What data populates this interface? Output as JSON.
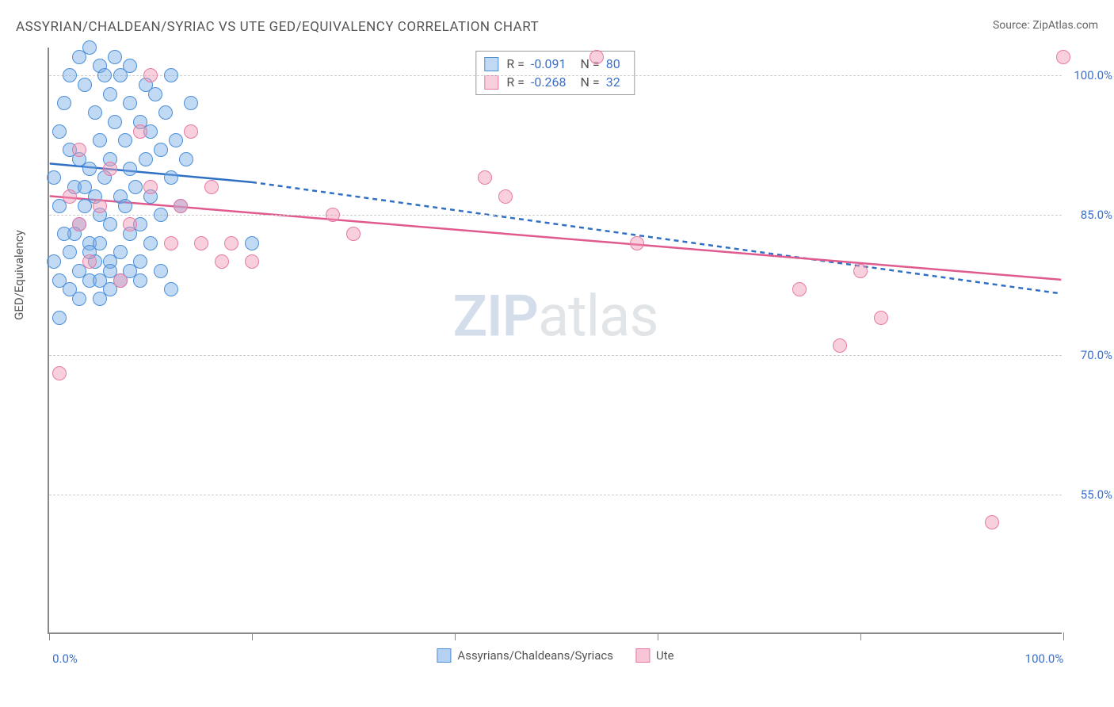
{
  "chart": {
    "type": "scatter",
    "title": "ASSYRIAN/CHALDEAN/SYRIAC VS UTE GED/EQUIVALENCY CORRELATION CHART",
    "source": "Source: ZipAtlas.com",
    "y_axis_label": "GED/Equivalency",
    "watermark_1": "ZIP",
    "watermark_2": "atlas",
    "background_color": "#ffffff",
    "grid_color": "#cccccc",
    "axis_color": "#888888",
    "tick_label_color": "#3b6fc9",
    "xlim": [
      0,
      100
    ],
    "ylim": [
      40,
      103
    ],
    "x_ticks": [
      0,
      20,
      40,
      60,
      80,
      100
    ],
    "x_tick_labels": {
      "0": "0.0%",
      "100": "100.0%"
    },
    "y_gridlines": [
      55,
      70,
      85,
      100
    ],
    "y_tick_labels": {
      "55": "55.0%",
      "70": "70.0%",
      "85": "85.0%",
      "100": "100.0%"
    },
    "marker_radius": 9,
    "marker_stroke_width": 1.5,
    "series": [
      {
        "name": "Assyrians/Chaldeans/Syriacs",
        "fill": "rgba(120,170,230,0.45)",
        "stroke": "#4a8fd8",
        "R": "-0.091",
        "N": "80",
        "regression": {
          "solid_from": [
            0,
            90.5
          ],
          "solid_to": [
            20,
            88.5
          ],
          "dashed_from": [
            20,
            88.5
          ],
          "dashed_to": [
            100,
            76.5
          ],
          "color": "#2f6fc4",
          "width": 2.5
        },
        "points": [
          [
            0.5,
            89
          ],
          [
            1,
            86
          ],
          [
            1,
            94
          ],
          [
            1.5,
            97
          ],
          [
            2,
            100
          ],
          [
            2,
            92
          ],
          [
            2.5,
            88
          ],
          [
            3,
            102
          ],
          [
            3,
            84
          ],
          [
            3,
            91
          ],
          [
            3.5,
            86
          ],
          [
            3.5,
            99
          ],
          [
            4,
            103
          ],
          [
            4,
            90
          ],
          [
            4,
            82
          ],
          [
            4.5,
            96
          ],
          [
            4.5,
            87
          ],
          [
            5,
            101
          ],
          [
            5,
            93
          ],
          [
            5,
            85
          ],
          [
            5.5,
            100
          ],
          [
            5.5,
            89
          ],
          [
            6,
            98
          ],
          [
            6,
            91
          ],
          [
            6,
            84
          ],
          [
            6.5,
            95
          ],
          [
            6.5,
            102
          ],
          [
            7,
            87
          ],
          [
            7,
            100
          ],
          [
            7.5,
            93
          ],
          [
            7.5,
            86
          ],
          [
            8,
            97
          ],
          [
            8,
            90
          ],
          [
            8,
            101
          ],
          [
            8.5,
            88
          ],
          [
            9,
            95
          ],
          [
            9,
            84
          ],
          [
            9.5,
            99
          ],
          [
            9.5,
            91
          ],
          [
            10,
            94
          ],
          [
            10,
            87
          ],
          [
            10.5,
            98
          ],
          [
            11,
            92
          ],
          [
            11,
            85
          ],
          [
            11.5,
            96
          ],
          [
            12,
            89
          ],
          [
            12,
            100
          ],
          [
            12.5,
            93
          ],
          [
            13,
            86
          ],
          [
            13.5,
            91
          ],
          [
            14,
            97
          ],
          [
            1,
            78
          ],
          [
            2,
            81
          ],
          [
            4,
            78
          ],
          [
            6,
            80
          ],
          [
            5,
            78
          ],
          [
            7,
            81
          ],
          [
            3,
            76
          ],
          [
            8,
            79
          ],
          [
            2.5,
            83
          ],
          [
            4.5,
            80
          ],
          [
            6,
            77
          ],
          [
            8,
            83
          ],
          [
            9,
            80
          ],
          [
            3,
            79
          ],
          [
            5,
            76
          ],
          [
            7,
            78
          ],
          [
            10,
            82
          ],
          [
            11,
            79
          ],
          [
            12,
            77
          ],
          [
            0.5,
            80
          ],
          [
            1.5,
            83
          ],
          [
            2,
            77
          ],
          [
            6,
            79
          ],
          [
            9,
            78
          ],
          [
            4,
            81
          ],
          [
            20,
            82
          ],
          [
            1,
            74
          ],
          [
            3.5,
            88
          ],
          [
            5,
            82
          ]
        ]
      },
      {
        "name": "Ute",
        "fill": "rgba(240,150,180,0.45)",
        "stroke": "#e67aa5",
        "R": "-0.268",
        "N": "32",
        "regression": {
          "solid_from": [
            0,
            87
          ],
          "solid_to": [
            100,
            78
          ],
          "color": "#e05a8e",
          "width": 2.5
        },
        "points": [
          [
            1,
            68
          ],
          [
            2,
            87
          ],
          [
            3,
            92
          ],
          [
            4,
            80
          ],
          [
            5,
            86
          ],
          [
            7,
            78
          ],
          [
            8,
            84
          ],
          [
            9,
            94
          ],
          [
            10,
            88
          ],
          [
            10,
            100
          ],
          [
            12,
            82
          ],
          [
            14,
            94
          ],
          [
            15,
            82
          ],
          [
            16,
            88
          ],
          [
            17,
            80
          ],
          [
            18,
            82
          ],
          [
            20,
            80
          ],
          [
            28,
            85
          ],
          [
            30,
            83
          ],
          [
            43,
            89
          ],
          [
            45,
            87
          ],
          [
            54,
            102
          ],
          [
            58,
            82
          ],
          [
            74,
            77
          ],
          [
            78,
            71
          ],
          [
            80,
            79
          ],
          [
            82,
            74
          ],
          [
            93,
            52
          ],
          [
            100,
            102
          ],
          [
            3,
            84
          ],
          [
            6,
            90
          ],
          [
            13,
            86
          ]
        ]
      }
    ],
    "bottom_legend": [
      {
        "label": "Assyrians/Chaldeans/Syriacs",
        "fill": "rgba(120,170,230,0.55)",
        "stroke": "#4a8fd8"
      },
      {
        "label": "Ute",
        "fill": "rgba(240,150,180,0.55)",
        "stroke": "#e67aa5"
      }
    ]
  }
}
